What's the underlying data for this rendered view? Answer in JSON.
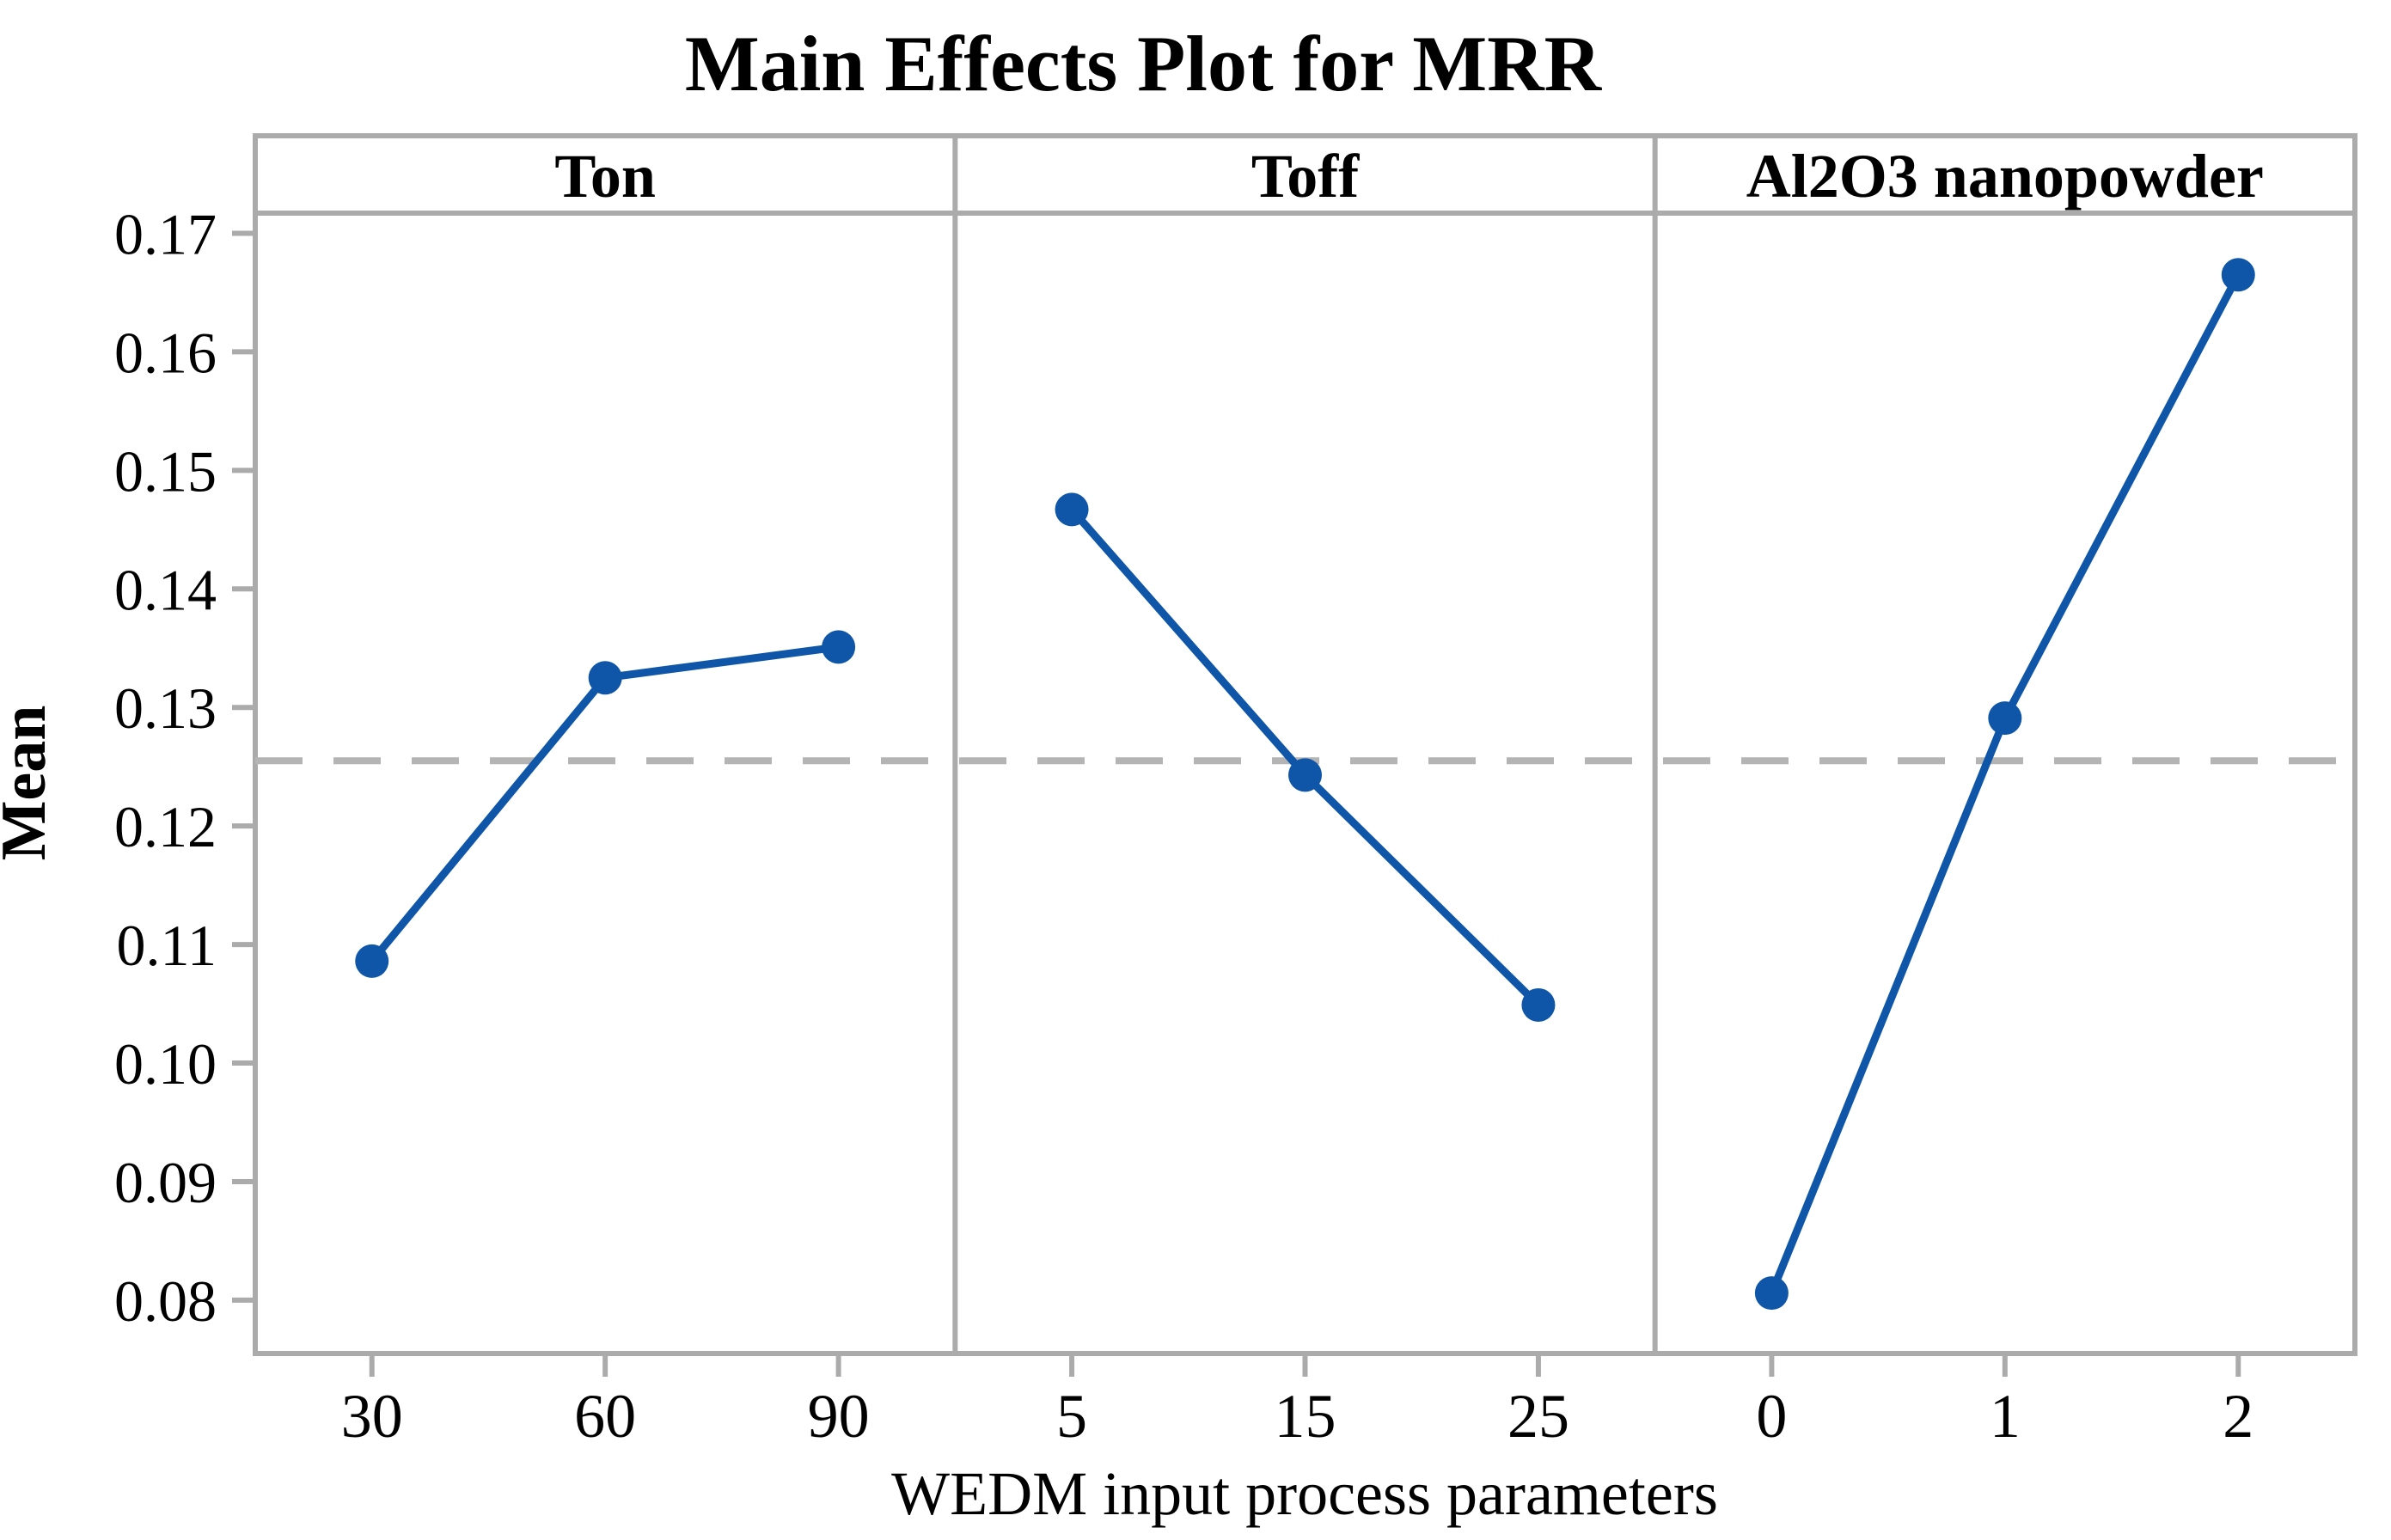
{
  "title": "Main Effects Plot for MRR",
  "chart_data": {
    "type": "line",
    "title": "Main Effects Plot for MRR",
    "xlabel": "WEDM input process parameters",
    "ylabel": "Mean",
    "ylim": [
      0.0755,
      0.1717
    ],
    "yticks": [
      0.08,
      0.09,
      0.1,
      0.11,
      0.12,
      0.13,
      0.14,
      0.15,
      0.16,
      0.17
    ],
    "ytick_labels": [
      "0.08",
      "0.09",
      "0.10",
      "0.11",
      "0.12",
      "0.13",
      "0.14",
      "0.15",
      "0.16",
      "0.17"
    ],
    "reference_line_mean": 0.1255,
    "grid": false,
    "legend_position": "none",
    "panels": [
      {
        "label": "Ton",
        "categories": [
          "30",
          "60",
          "90"
        ],
        "values": [
          0.1086,
          0.1325,
          0.1351
        ]
      },
      {
        "label": "Toff",
        "categories": [
          "5",
          "15",
          "25"
        ],
        "values": [
          0.1467,
          0.1243,
          0.1049
        ]
      },
      {
        "label": "Al2O3 nanopowder",
        "categories": [
          "0",
          "1",
          "2"
        ],
        "values": [
          0.0806,
          0.1291,
          0.1665
        ]
      }
    ],
    "colors": {
      "series_line": "#0F56A8",
      "marker": "#0F56A8",
      "frame_gray": "#ABABAB",
      "reference_dash": "#B4B4B4",
      "text": "#000000",
      "background": "#FFFFFF"
    }
  }
}
